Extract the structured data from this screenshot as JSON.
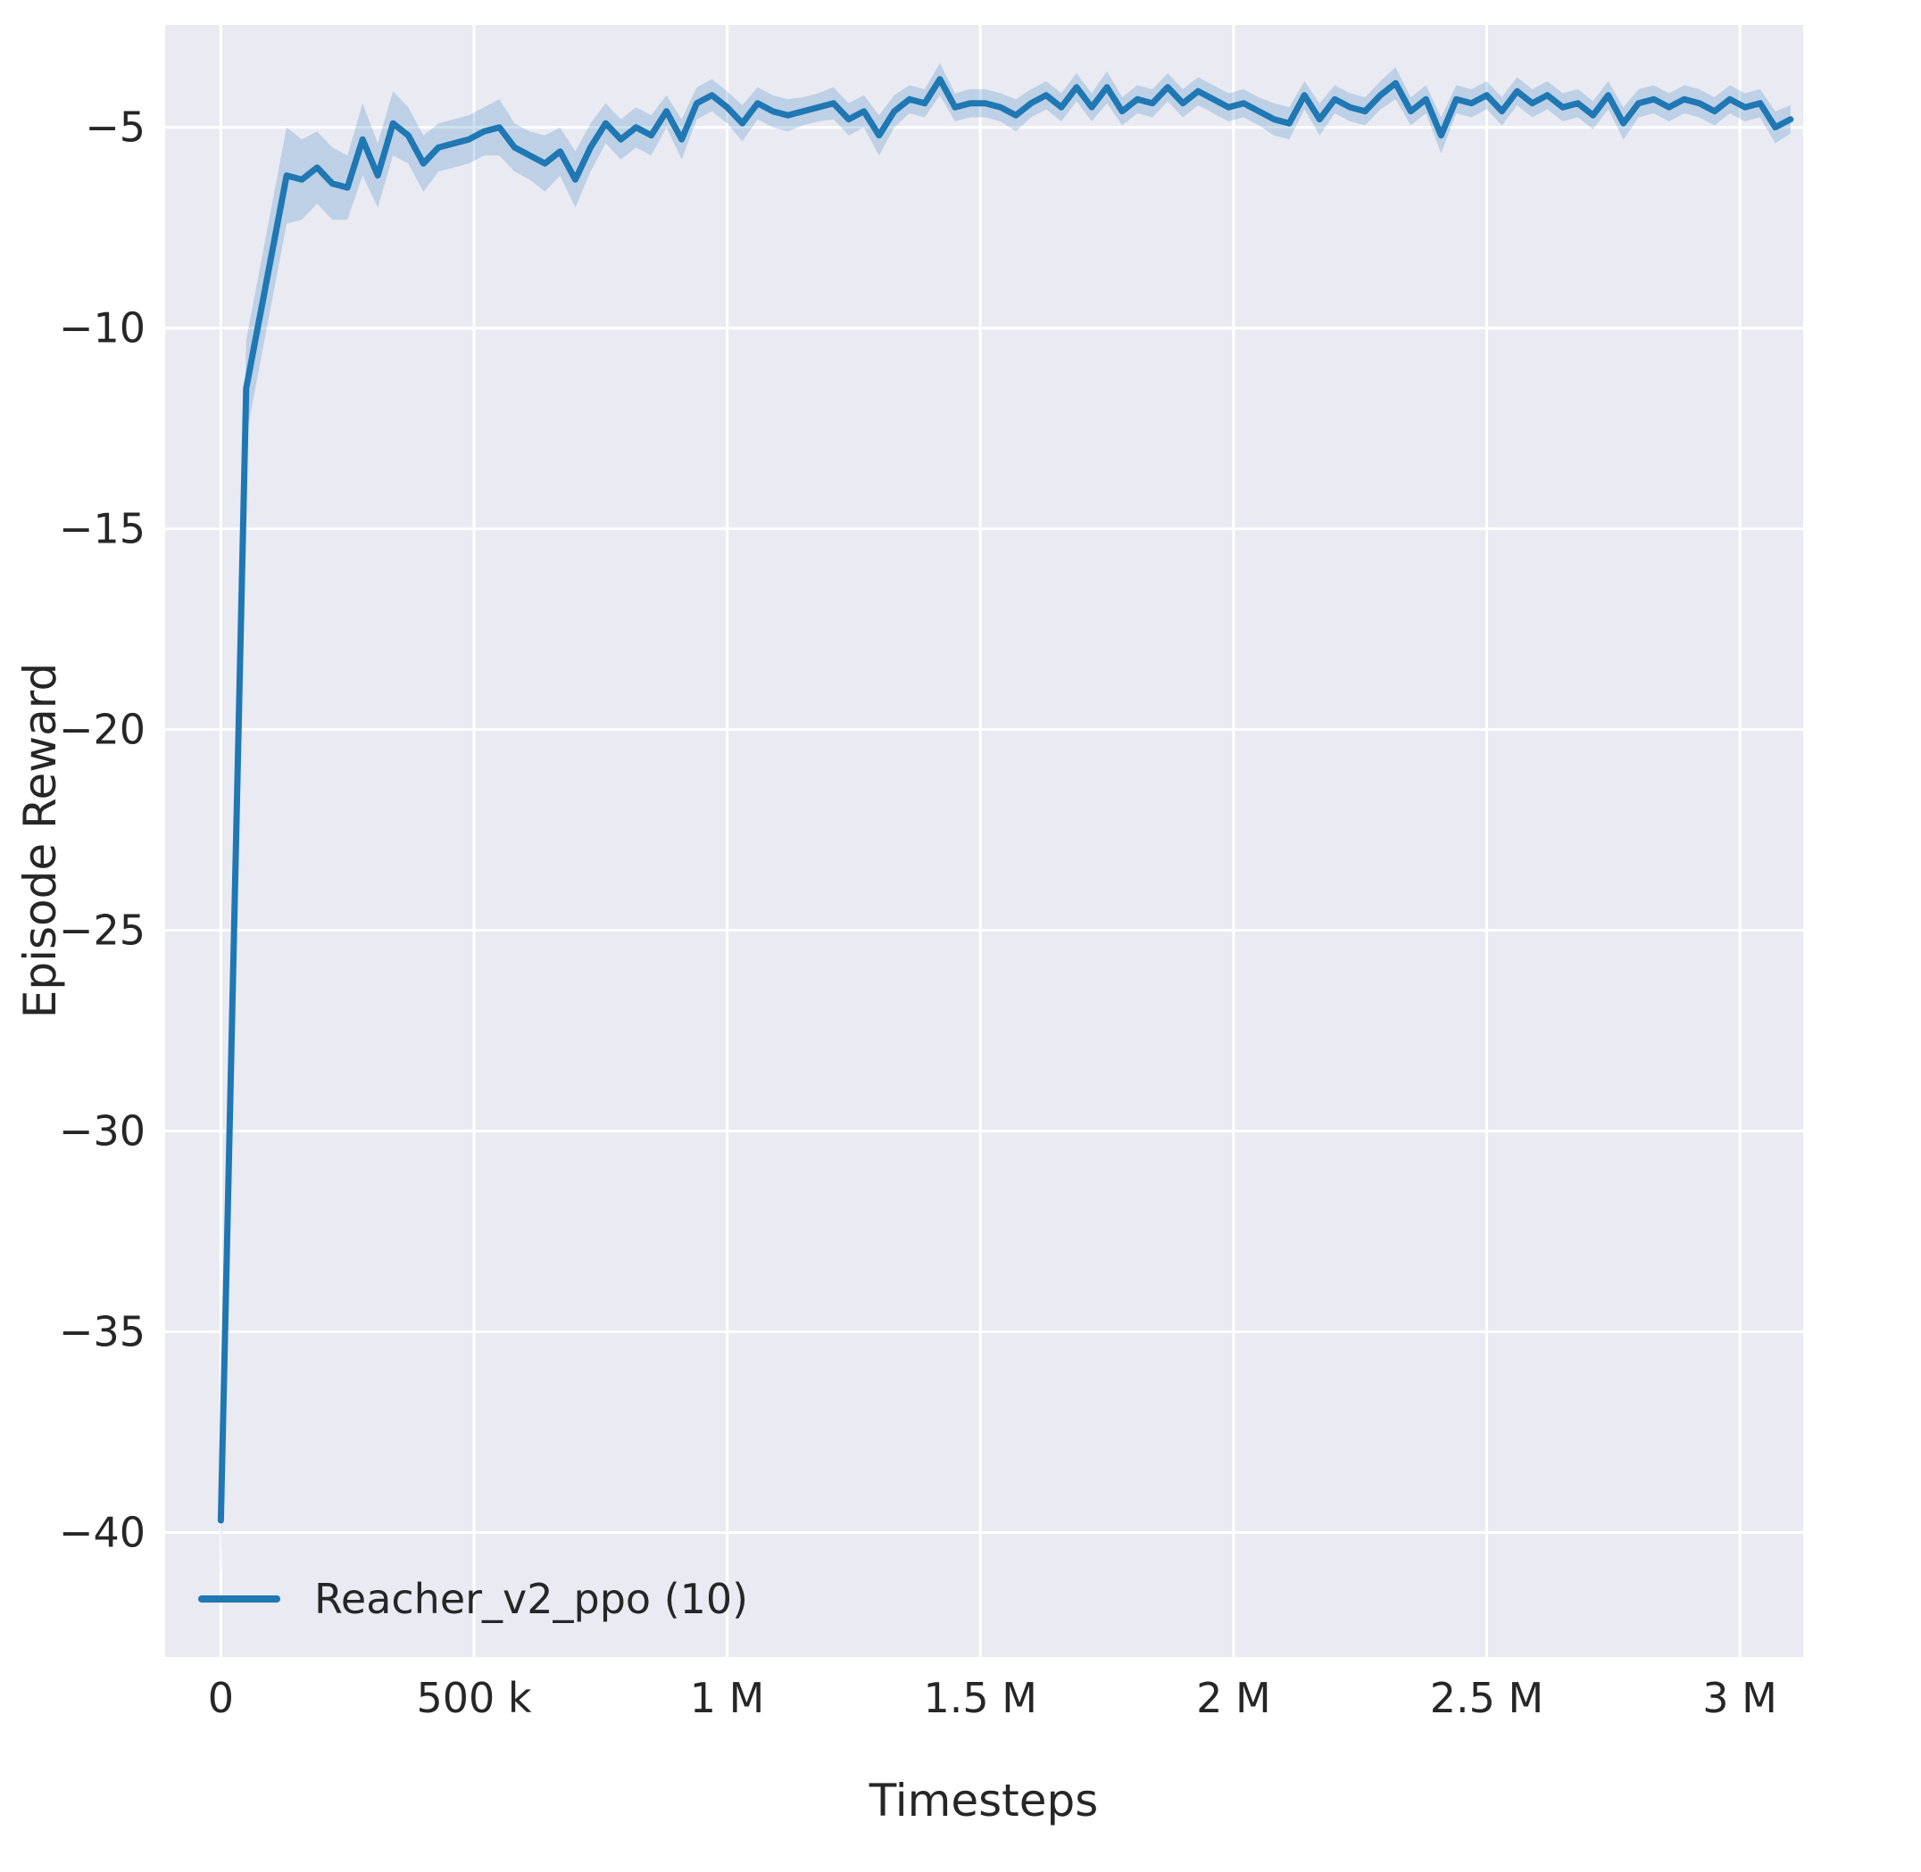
{
  "chart_data": {
    "type": "line",
    "title": "",
    "xlabel": "Timesteps",
    "ylabel": "Episode Reward",
    "grid": true,
    "legend_position": "lower left",
    "plot_bg": "#eaeaf2",
    "grid_color": "#ffffff",
    "text_color": "#262626",
    "xlim": [
      -110000,
      3125000
    ],
    "ylim": [
      -43.1,
      -2.45
    ],
    "x_ticks": {
      "values": [
        0,
        500000,
        1000000,
        1500000,
        2000000,
        2500000,
        3000000
      ],
      "labels": [
        "0",
        "500 k",
        "1 M",
        "1.5 M",
        "2 M",
        "2.5 M",
        "3 M"
      ]
    },
    "y_ticks": {
      "values": [
        -5,
        -10,
        -15,
        -20,
        -25,
        -30,
        -35,
        -40
      ],
      "labels": [
        "−5",
        "−10",
        "−15",
        "−20",
        "−25",
        "−30",
        "−35",
        "−40"
      ]
    },
    "series": [
      {
        "name": "Reacher_v2_ppo (10)",
        "color": "#1f77b4",
        "band_color": "rgba(31,119,180,0.22)",
        "x": [
          0,
          50000,
          130000,
          160000,
          190000,
          220000,
          250000,
          280000,
          310000,
          340000,
          370000,
          400000,
          430000,
          460000,
          490000,
          520000,
          550000,
          580000,
          610000,
          640000,
          670000,
          700000,
          730000,
          760000,
          790000,
          820000,
          850000,
          880000,
          910000,
          940000,
          970000,
          1000000,
          1030000,
          1060000,
          1090000,
          1120000,
          1150000,
          1180000,
          1210000,
          1240000,
          1270000,
          1300000,
          1330000,
          1360000,
          1390000,
          1420000,
          1450000,
          1480000,
          1510000,
          1540000,
          1570000,
          1600000,
          1630000,
          1660000,
          1690000,
          1720000,
          1750000,
          1780000,
          1810000,
          1840000,
          1870000,
          1900000,
          1930000,
          1960000,
          1990000,
          2020000,
          2050000,
          2080000,
          2110000,
          2140000,
          2170000,
          2200000,
          2230000,
          2260000,
          2290000,
          2320000,
          2350000,
          2380000,
          2410000,
          2440000,
          2470000,
          2500000,
          2530000,
          2560000,
          2590000,
          2620000,
          2650000,
          2680000,
          2710000,
          2740000,
          2770000,
          2800000,
          2830000,
          2860000,
          2890000,
          2920000,
          2950000,
          2980000,
          3010000,
          3040000,
          3070000,
          3100000
        ],
        "y": [
          -39.7,
          -11.5,
          -6.2,
          -6.3,
          -6.0,
          -6.4,
          -6.5,
          -5.3,
          -6.2,
          -4.9,
          -5.2,
          -5.9,
          -5.5,
          -5.4,
          -5.3,
          -5.1,
          -5.0,
          -5.5,
          -5.7,
          -5.9,
          -5.6,
          -6.3,
          -5.5,
          -4.9,
          -5.3,
          -5.0,
          -5.2,
          -4.6,
          -5.3,
          -4.4,
          -4.2,
          -4.5,
          -4.9,
          -4.4,
          -4.6,
          -4.7,
          -4.6,
          -4.5,
          -4.4,
          -4.8,
          -4.6,
          -5.2,
          -4.6,
          -4.3,
          -4.4,
          -3.8,
          -4.5,
          -4.4,
          -4.4,
          -4.5,
          -4.7,
          -4.4,
          -4.2,
          -4.5,
          -4.0,
          -4.5,
          -4.0,
          -4.6,
          -4.3,
          -4.4,
          -4.0,
          -4.4,
          -4.1,
          -4.3,
          -4.5,
          -4.4,
          -4.6,
          -4.8,
          -4.9,
          -4.2,
          -4.8,
          -4.3,
          -4.5,
          -4.6,
          -4.2,
          -3.9,
          -4.6,
          -4.3,
          -5.2,
          -4.3,
          -4.4,
          -4.2,
          -4.6,
          -4.1,
          -4.4,
          -4.2,
          -4.5,
          -4.4,
          -4.7,
          -4.2,
          -4.9,
          -4.4,
          -4.3,
          -4.5,
          -4.3,
          -4.4,
          -4.6,
          -4.3,
          -4.5,
          -4.4,
          -5.0,
          -4.8
        ],
        "band": [
          1.5,
          1.2,
          1.2,
          1.0,
          0.9,
          0.9,
          0.8,
          0.9,
          0.8,
          0.8,
          0.7,
          0.7,
          0.6,
          0.6,
          0.6,
          0.6,
          0.7,
          0.6,
          0.6,
          0.7,
          0.6,
          0.7,
          0.6,
          0.5,
          0.5,
          0.5,
          0.5,
          0.4,
          0.5,
          0.4,
          0.4,
          0.4,
          0.45,
          0.4,
          0.4,
          0.4,
          0.35,
          0.35,
          0.4,
          0.4,
          0.4,
          0.5,
          0.4,
          0.35,
          0.35,
          0.4,
          0.35,
          0.35,
          0.35,
          0.35,
          0.4,
          0.35,
          0.35,
          0.35,
          0.35,
          0.35,
          0.4,
          0.35,
          0.35,
          0.35,
          0.35,
          0.35,
          0.35,
          0.35,
          0.35,
          0.35,
          0.35,
          0.4,
          0.4,
          0.35,
          0.4,
          0.35,
          0.35,
          0.35,
          0.35,
          0.4,
          0.35,
          0.35,
          0.45,
          0.35,
          0.35,
          0.35,
          0.35,
          0.35,
          0.35,
          0.35,
          0.35,
          0.35,
          0.35,
          0.35,
          0.4,
          0.35,
          0.35,
          0.35,
          0.35,
          0.35,
          0.35,
          0.35,
          0.35,
          0.35,
          0.4,
          0.35
        ]
      }
    ]
  }
}
